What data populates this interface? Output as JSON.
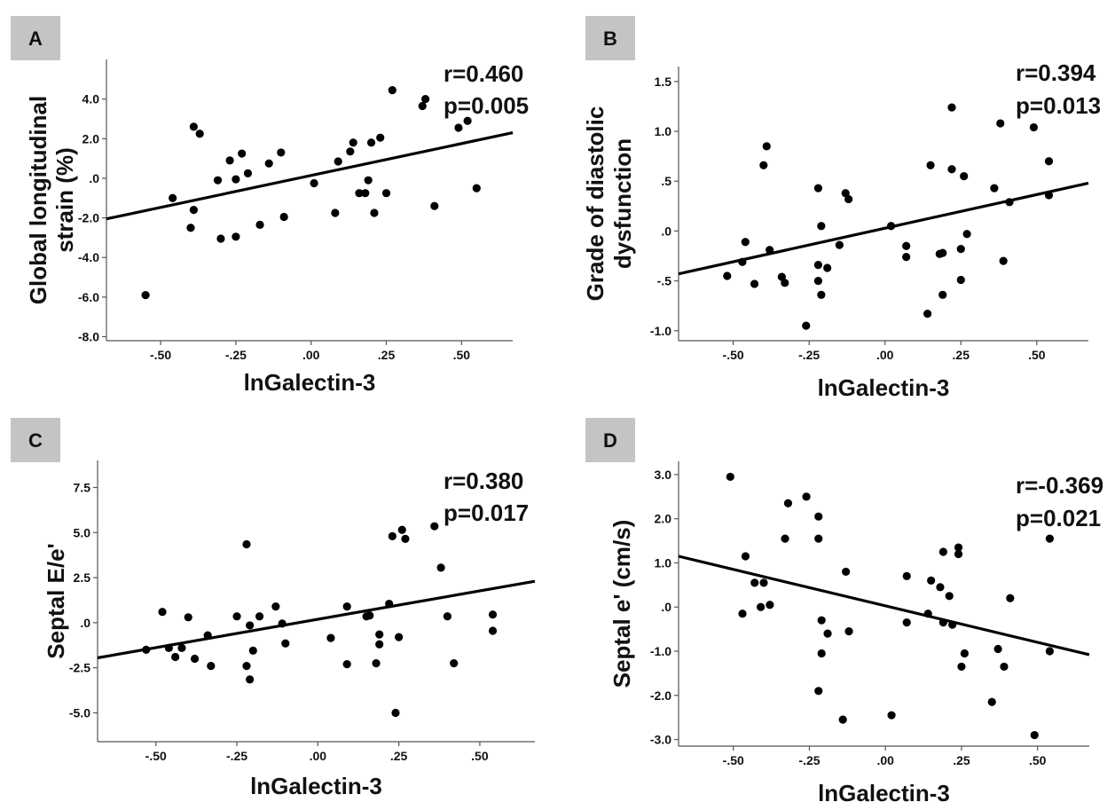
{
  "chart_data": [
    {
      "type": "scatter",
      "panel_label": "A",
      "xlabel": "lnGalectin-3",
      "ylabel_lines": [
        "Global longitudinal",
        "strain (%)"
      ],
      "xlim": [
        -0.68,
        0.67
      ],
      "ylim": [
        -8.2,
        6.0
      ],
      "xticks": [
        -0.5,
        -0.25,
        0.0,
        0.25,
        0.5
      ],
      "xtick_labels": [
        "-.50",
        "-.25",
        ".00",
        ".25",
        ".50"
      ],
      "yticks": [
        4,
        2,
        0,
        -2,
        -4,
        -6,
        -8
      ],
      "ytick_labels": [
        "4.0",
        "2.0",
        ".0",
        "-2.0",
        "-4.0",
        "-6.0",
        "-8.0"
      ],
      "stats": [
        "r=0.460",
        "p=0.005"
      ],
      "fit": {
        "x": [
          -0.68,
          0.67
        ],
        "y": [
          -2.05,
          2.3
        ]
      },
      "points": [
        {
          "x": -0.55,
          "y": -5.9
        },
        {
          "x": -0.46,
          "y": -1.0
        },
        {
          "x": -0.39,
          "y": 2.6
        },
        {
          "x": -0.37,
          "y": 2.25
        },
        {
          "x": -0.39,
          "y": -1.6
        },
        {
          "x": -0.4,
          "y": -2.5
        },
        {
          "x": -0.31,
          "y": -0.1
        },
        {
          "x": -0.3,
          "y": -3.05
        },
        {
          "x": -0.27,
          "y": 0.9
        },
        {
          "x": -0.25,
          "y": -0.05
        },
        {
          "x": -0.23,
          "y": 1.25
        },
        {
          "x": -0.25,
          "y": -2.95
        },
        {
          "x": -0.21,
          "y": 0.25
        },
        {
          "x": -0.17,
          "y": -2.35
        },
        {
          "x": -0.14,
          "y": 0.75
        },
        {
          "x": -0.1,
          "y": 1.3
        },
        {
          "x": -0.09,
          "y": -1.95
        },
        {
          "x": 0.01,
          "y": -0.25
        },
        {
          "x": 0.08,
          "y": -1.75
        },
        {
          "x": 0.09,
          "y": 0.85
        },
        {
          "x": 0.13,
          "y": 1.35
        },
        {
          "x": 0.14,
          "y": 1.8
        },
        {
          "x": 0.16,
          "y": -0.75
        },
        {
          "x": 0.18,
          "y": -0.75
        },
        {
          "x": 0.19,
          "y": -0.1
        },
        {
          "x": 0.2,
          "y": 1.8
        },
        {
          "x": 0.21,
          "y": -1.75
        },
        {
          "x": 0.23,
          "y": 2.05
        },
        {
          "x": 0.25,
          "y": -0.75
        },
        {
          "x": 0.27,
          "y": 4.45
        },
        {
          "x": 0.37,
          "y": 3.65
        },
        {
          "x": 0.38,
          "y": 4.0
        },
        {
          "x": 0.41,
          "y": -1.4
        },
        {
          "x": 0.49,
          "y": 2.55
        },
        {
          "x": 0.52,
          "y": 2.9
        },
        {
          "x": 0.55,
          "y": -0.5
        }
      ]
    },
    {
      "type": "scatter",
      "panel_label": "B",
      "xlabel": "lnGalectin-3",
      "ylabel_lines": [
        "Grade of diastolic",
        "dysfunction"
      ],
      "xlim": [
        -0.68,
        0.67
      ],
      "ylim": [
        -1.1,
        1.65
      ],
      "xticks": [
        -0.5,
        -0.25,
        0.0,
        0.25,
        0.5
      ],
      "xtick_labels": [
        "-.50",
        "-.25",
        ".00",
        ".25",
        ".50"
      ],
      "yticks": [
        1.5,
        1.0,
        0.5,
        0.0,
        -0.5,
        -1.0
      ],
      "ytick_labels": [
        "1.5",
        "1.0",
        ".5",
        ".0",
        "-.5",
        "-1.0"
      ],
      "stats": [
        "r=0.394",
        "p=0.013"
      ],
      "fit": {
        "x": [
          -0.68,
          0.67
        ],
        "y": [
          -0.43,
          0.48
        ]
      },
      "points": [
        {
          "x": -0.52,
          "y": -0.45
        },
        {
          "x": -0.47,
          "y": -0.31
        },
        {
          "x": -0.46,
          "y": -0.11
        },
        {
          "x": -0.43,
          "y": -0.53
        },
        {
          "x": -0.4,
          "y": 0.66
        },
        {
          "x": -0.39,
          "y": 0.85
        },
        {
          "x": -0.38,
          "y": -0.19
        },
        {
          "x": -0.34,
          "y": -0.46
        },
        {
          "x": -0.33,
          "y": -0.52
        },
        {
          "x": -0.26,
          "y": -0.95
        },
        {
          "x": -0.22,
          "y": 0.43
        },
        {
          "x": -0.22,
          "y": -0.34
        },
        {
          "x": -0.22,
          "y": -0.5
        },
        {
          "x": -0.21,
          "y": -0.64
        },
        {
          "x": -0.21,
          "y": 0.05
        },
        {
          "x": -0.19,
          "y": -0.37
        },
        {
          "x": -0.15,
          "y": -0.14
        },
        {
          "x": -0.13,
          "y": 0.38
        },
        {
          "x": -0.12,
          "y": 0.32
        },
        {
          "x": 0.02,
          "y": 0.05
        },
        {
          "x": 0.07,
          "y": -0.15
        },
        {
          "x": 0.07,
          "y": -0.26
        },
        {
          "x": 0.14,
          "y": -0.83
        },
        {
          "x": 0.15,
          "y": 0.66
        },
        {
          "x": 0.18,
          "y": -0.23
        },
        {
          "x": 0.19,
          "y": -0.64
        },
        {
          "x": 0.19,
          "y": -0.22
        },
        {
          "x": 0.22,
          "y": 1.24
        },
        {
          "x": 0.22,
          "y": 0.62
        },
        {
          "x": 0.25,
          "y": -0.49
        },
        {
          "x": 0.25,
          "y": -0.18
        },
        {
          "x": 0.26,
          "y": 0.55
        },
        {
          "x": 0.27,
          "y": -0.03
        },
        {
          "x": 0.36,
          "y": 0.43
        },
        {
          "x": 0.38,
          "y": 1.08
        },
        {
          "x": 0.39,
          "y": -0.3
        },
        {
          "x": 0.41,
          "y": 0.29
        },
        {
          "x": 0.49,
          "y": 1.04
        },
        {
          "x": 0.54,
          "y": 0.7
        },
        {
          "x": 0.54,
          "y": 0.36
        }
      ]
    },
    {
      "type": "scatter",
      "panel_label": "C",
      "xlabel": "lnGalectin-3",
      "ylabel_lines": [
        "Septal E/e'"
      ],
      "xlim": [
        -0.68,
        0.67
      ],
      "ylim": [
        -6.6,
        9.0
      ],
      "xticks": [
        -0.5,
        -0.25,
        0.0,
        0.25,
        0.5
      ],
      "xtick_labels": [
        "-.50",
        "-.25",
        ".00",
        ".25",
        ".50"
      ],
      "yticks": [
        7.5,
        5.0,
        2.5,
        0.0,
        -2.5,
        -5.0
      ],
      "ytick_labels": [
        "7.5",
        "5.0",
        "2.5",
        ".0",
        "-2.5",
        "-5.0"
      ],
      "stats": [
        "r=0.380",
        "p=0.017"
      ],
      "fit": {
        "x": [
          -0.68,
          0.67
        ],
        "y": [
          -1.95,
          2.3
        ]
      },
      "points": [
        {
          "x": -0.53,
          "y": -1.5
        },
        {
          "x": -0.48,
          "y": 0.6
        },
        {
          "x": -0.46,
          "y": -1.4
        },
        {
          "x": -0.44,
          "y": -1.9
        },
        {
          "x": -0.42,
          "y": -1.4
        },
        {
          "x": -0.4,
          "y": 0.3
        },
        {
          "x": -0.38,
          "y": -2.0
        },
        {
          "x": -0.34,
          "y": -0.7
        },
        {
          "x": -0.33,
          "y": -2.4
        },
        {
          "x": -0.25,
          "y": 0.35
        },
        {
          "x": -0.22,
          "y": 4.35
        },
        {
          "x": -0.22,
          "y": -2.4
        },
        {
          "x": -0.21,
          "y": -3.15
        },
        {
          "x": -0.21,
          "y": -0.15
        },
        {
          "x": -0.2,
          "y": -1.55
        },
        {
          "x": -0.18,
          "y": 0.35
        },
        {
          "x": -0.13,
          "y": 0.9
        },
        {
          "x": -0.11,
          "y": -0.05
        },
        {
          "x": -0.1,
          "y": -1.15
        },
        {
          "x": 0.04,
          "y": -0.85
        },
        {
          "x": 0.09,
          "y": 0.9
        },
        {
          "x": 0.09,
          "y": -2.3
        },
        {
          "x": 0.15,
          "y": 0.35
        },
        {
          "x": 0.16,
          "y": 0.4
        },
        {
          "x": 0.18,
          "y": -2.25
        },
        {
          "x": 0.19,
          "y": -0.65
        },
        {
          "x": 0.19,
          "y": -1.2
        },
        {
          "x": 0.22,
          "y": 1.05
        },
        {
          "x": 0.23,
          "y": 4.8
        },
        {
          "x": 0.24,
          "y": -5.0
        },
        {
          "x": 0.25,
          "y": -0.8
        },
        {
          "x": 0.26,
          "y": 5.15
        },
        {
          "x": 0.27,
          "y": 4.65
        },
        {
          "x": 0.36,
          "y": 5.35
        },
        {
          "x": 0.38,
          "y": 3.05
        },
        {
          "x": 0.4,
          "y": 0.35
        },
        {
          "x": 0.42,
          "y": -2.25
        },
        {
          "x": 0.54,
          "y": 0.45
        },
        {
          "x": 0.54,
          "y": -0.45
        }
      ]
    },
    {
      "type": "scatter",
      "panel_label": "D",
      "xlabel": "lnGalectin-3",
      "ylabel_lines": [
        "Septal e' (cm/s)"
      ],
      "xlim": [
        -0.68,
        0.67
      ],
      "ylim": [
        -3.15,
        3.3
      ],
      "xticks": [
        -0.5,
        -0.25,
        0.0,
        0.25,
        0.5
      ],
      "xtick_labels": [
        "-.50",
        "-.25",
        ".00",
        ".25",
        ".50"
      ],
      "yticks": [
        3.0,
        2.0,
        1.0,
        0.0,
        -1.0,
        -2.0,
        -3.0
      ],
      "ytick_labels": [
        "3.0",
        "2.0",
        "1.0",
        ".0",
        "-1.0",
        "-2.0",
        "-3.0"
      ],
      "stats": [
        "r=-0.369",
        "p=0.021"
      ],
      "fit": {
        "x": [
          -0.68,
          0.67
        ],
        "y": [
          1.15,
          -1.08
        ]
      },
      "points": [
        {
          "x": -0.51,
          "y": 2.95
        },
        {
          "x": -0.47,
          "y": -0.15
        },
        {
          "x": -0.46,
          "y": 1.15
        },
        {
          "x": -0.43,
          "y": 0.55
        },
        {
          "x": -0.41,
          "y": 0.0
        },
        {
          "x": -0.4,
          "y": 0.55
        },
        {
          "x": -0.38,
          "y": 0.05
        },
        {
          "x": -0.33,
          "y": 1.55
        },
        {
          "x": -0.32,
          "y": 2.35
        },
        {
          "x": -0.26,
          "y": 2.5
        },
        {
          "x": -0.22,
          "y": 2.05
        },
        {
          "x": -0.22,
          "y": 1.55
        },
        {
          "x": -0.22,
          "y": -1.9
        },
        {
          "x": -0.21,
          "y": -0.3
        },
        {
          "x": -0.21,
          "y": -1.05
        },
        {
          "x": -0.19,
          "y": -0.6
        },
        {
          "x": -0.14,
          "y": -2.55
        },
        {
          "x": -0.13,
          "y": 0.8
        },
        {
          "x": -0.12,
          "y": -0.55
        },
        {
          "x": 0.02,
          "y": -2.45
        },
        {
          "x": 0.07,
          "y": 0.7
        },
        {
          "x": 0.07,
          "y": -0.35
        },
        {
          "x": 0.14,
          "y": -0.15
        },
        {
          "x": 0.15,
          "y": 0.6
        },
        {
          "x": 0.18,
          "y": 0.45
        },
        {
          "x": 0.19,
          "y": 1.25
        },
        {
          "x": 0.19,
          "y": -0.35
        },
        {
          "x": 0.21,
          "y": 0.25
        },
        {
          "x": 0.22,
          "y": -0.4
        },
        {
          "x": 0.24,
          "y": 1.35
        },
        {
          "x": 0.24,
          "y": 1.2
        },
        {
          "x": 0.25,
          "y": -1.35
        },
        {
          "x": 0.26,
          "y": -1.05
        },
        {
          "x": 0.35,
          "y": -2.15
        },
        {
          "x": 0.37,
          "y": -0.95
        },
        {
          "x": 0.39,
          "y": -1.35
        },
        {
          "x": 0.41,
          "y": 0.2
        },
        {
          "x": 0.49,
          "y": -2.9
        },
        {
          "x": 0.54,
          "y": 1.55
        },
        {
          "x": 0.54,
          "y": -1.0
        }
      ]
    }
  ]
}
